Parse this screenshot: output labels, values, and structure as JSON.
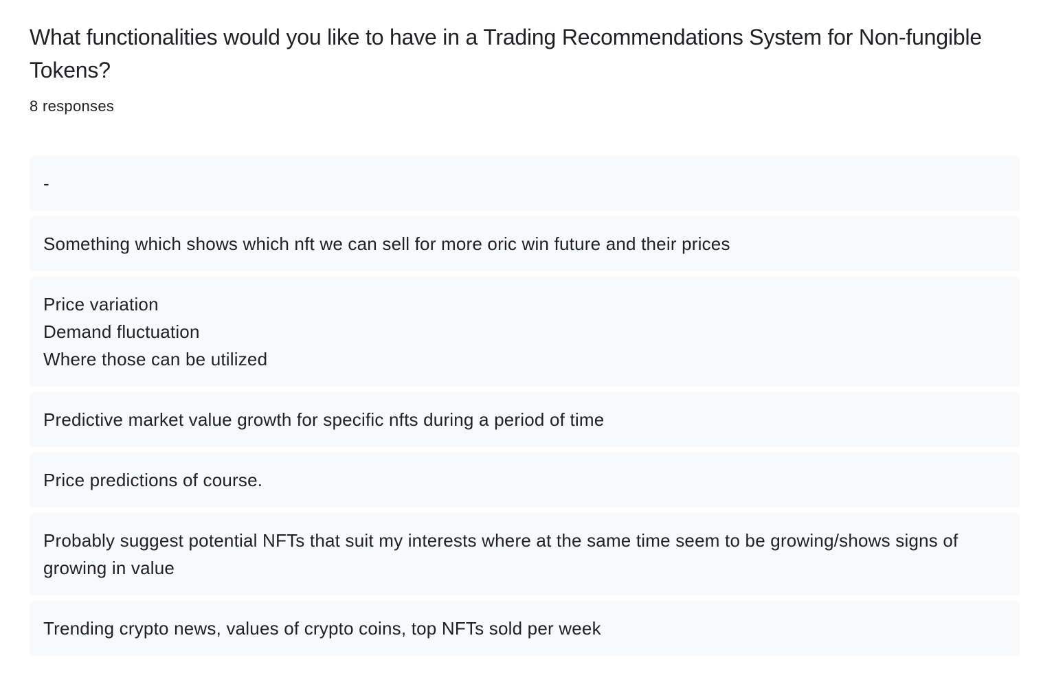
{
  "question": {
    "title": "What functionalities would you like to have in a Trading Recommendations System for Non-fungible Tokens?",
    "response_count": "8 responses"
  },
  "responses": [
    "-",
    "Something which shows which nft we can sell for more oric win future and their prices",
    "Price variation\nDemand fluctuation\nWhere those can be utilized",
    "Predictive market value growth for specific nfts during a period of time",
    "Price predictions of course.",
    "Probably suggest potential NFTs that suit my interests where at the same time seem to be growing/shows signs of growing in value",
    "Trending crypto news, values of crypto coins, top NFTs sold per week"
  ],
  "colors": {
    "text": "#202124",
    "response_background": "#f8f9fa",
    "page_background": "#ffffff"
  }
}
